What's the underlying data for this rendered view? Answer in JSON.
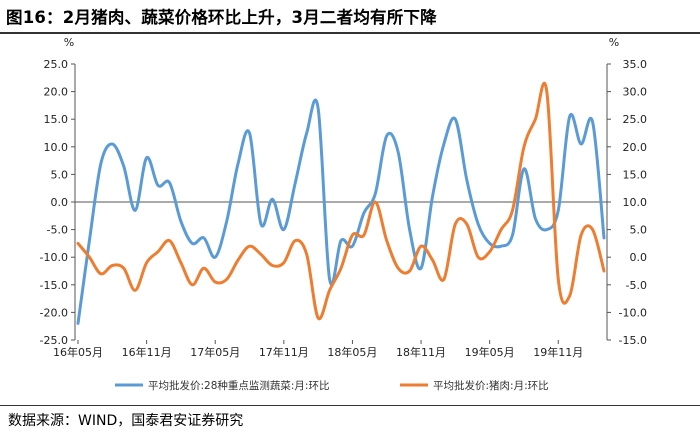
{
  "page": {
    "title": "图16：2月猪肉、蔬菜价格环比上升，3月二者均有所下降",
    "source": "数据来源：WIND，国泰君安证券研究"
  },
  "chart_data": {
    "type": "line",
    "x": [
      "16年05月",
      "16年06月",
      "16年07月",
      "16年08月",
      "16年09月",
      "16年10月",
      "16年11月",
      "16年12月",
      "17年01月",
      "17年02月",
      "17年03月",
      "17年04月",
      "17年05月",
      "17年06月",
      "17年07月",
      "17年08月",
      "17年09月",
      "17年10月",
      "17年11月",
      "17年12月",
      "18年01月",
      "18年02月",
      "18年03月",
      "18年04月",
      "18年05月",
      "18年06月",
      "18年07月",
      "18年08月",
      "18年09月",
      "18年10月",
      "18年11月",
      "18年12月",
      "19年01月",
      "19年02月",
      "19年03月",
      "19年04月",
      "19年05月",
      "19年06月",
      "19年07月",
      "19年08月",
      "19年09月",
      "19年10月",
      "19年11月",
      "19年12月",
      "20年01月",
      "20年02月",
      "20年03月"
    ],
    "x_tick_labels": [
      "16年05月",
      "16年11月",
      "17年05月",
      "17年11月",
      "18年05月",
      "18年11月",
      "19年05月",
      "19年11月"
    ],
    "left_axis": {
      "label": "%",
      "ylim": [
        -25,
        25
      ],
      "ticks": [
        "25.0",
        "20.0",
        "15.0",
        "10.0",
        "5.0",
        "0.0",
        "-5.0",
        "-10.0",
        "-15.0",
        "-20.0",
        "-25.0"
      ]
    },
    "right_axis": {
      "label": "%",
      "ylim": [
        -15,
        35
      ],
      "ticks": [
        "35.0",
        "30.0",
        "25.0",
        "20.0",
        "15.0",
        "10.0",
        "5.0",
        "0.0",
        "-5.0",
        "-10.0",
        "-15.0"
      ]
    },
    "series": [
      {
        "name": "平均批发价:28种重点监测蔬菜:月:环比",
        "axis": "left",
        "color": "#5b9bd5",
        "values": [
          -22.0,
          -7.0,
          7.0,
          10.5,
          6.5,
          -1.5,
          8.0,
          3.0,
          3.5,
          -3.5,
          -7.5,
          -6.5,
          -10.0,
          -3.5,
          7.0,
          12.5,
          -4.0,
          0.5,
          -5.0,
          3.5,
          12.5,
          17.0,
          -14.0,
          -7.0,
          -8.0,
          -2.0,
          1.5,
          12.0,
          9.0,
          -5.0,
          -12.0,
          1.0,
          10.5,
          15.0,
          4.0,
          -4.0,
          -7.5,
          -8.0,
          -6.0,
          6.0,
          -3.0,
          -5.0,
          -1.5,
          15.5,
          10.5,
          14.5,
          -6.5
        ]
      },
      {
        "name": "平均批发价:猪肉:月:环比",
        "axis": "right",
        "color": "#ed7d31",
        "values": [
          2.5,
          0.0,
          -3.0,
          -1.5,
          -2.0,
          -6.0,
          -1.0,
          1.0,
          3.0,
          -1.0,
          -5.0,
          -2.0,
          -4.5,
          -4.0,
          -0.5,
          2.0,
          0.5,
          -1.5,
          -1.0,
          3.0,
          0.5,
          -11.0,
          -6.0,
          -2.0,
          4.0,
          4.0,
          10.0,
          3.0,
          -2.0,
          -2.5,
          2.0,
          -0.5,
          -4.0,
          6.0,
          6.0,
          0.0,
          1.0,
          5.0,
          8.5,
          20.0,
          25.0,
          30.0,
          -4.0,
          -7.0,
          4.0,
          5.0,
          -2.5
        ]
      }
    ],
    "grid": false,
    "legend": "bottom"
  }
}
